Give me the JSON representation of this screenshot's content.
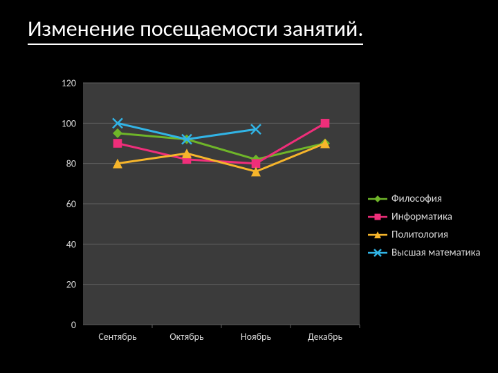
{
  "title": "Изменение посещаемости занятий.",
  "chart": {
    "type": "line",
    "background": "#000000",
    "plot_bg": "#3b3b3b",
    "grid_color": "#606060",
    "text_color": "#d9d9d9",
    "title_fontsize": 32,
    "label_fontsize": 14,
    "categories": [
      "Сентябрь",
      "Октябрь",
      "Ноябрь",
      "Декабрь"
    ],
    "ylim": [
      0,
      120
    ],
    "ytick_step": 20,
    "yticks": [
      "0",
      "20",
      "40",
      "60",
      "80",
      "100",
      "120"
    ],
    "series": [
      {
        "name": "Философия",
        "color": "#6fb529",
        "marker": "diamond",
        "values": [
          95,
          92,
          82,
          90
        ]
      },
      {
        "name": "Информатика",
        "color": "#ef2e7a",
        "marker": "square",
        "values": [
          90,
          82,
          80,
          100
        ]
      },
      {
        "name": "Политология",
        "color": "#f6b52b",
        "marker": "triangle",
        "values": [
          80,
          85,
          76,
          90
        ]
      },
      {
        "name": "Высшая математика",
        "color": "#31b4e6",
        "marker": "x",
        "values": [
          100,
          92,
          97,
          null
        ]
      }
    ],
    "line_width": 3,
    "marker_size": 7
  }
}
